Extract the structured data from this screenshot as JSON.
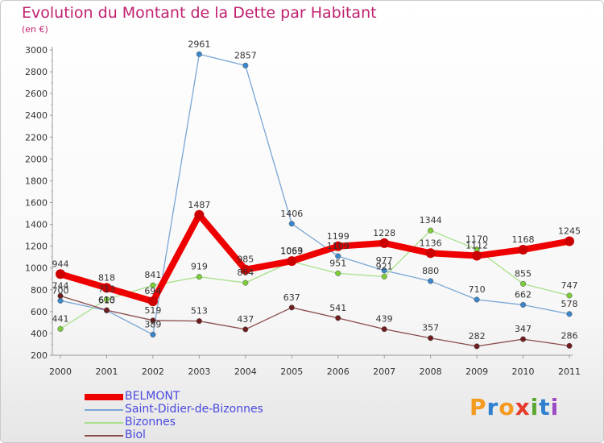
{
  "title": "Evolution du Montant de la Dette par Habitant",
  "subtitle": "(en €)",
  "logo": {
    "letters": [
      "P",
      "r",
      "o",
      "x",
      "i",
      "t",
      "i"
    ],
    "colors": [
      "#f39a1f",
      "#2f7fd1",
      "#f39a1f",
      "#e53b2c",
      "#5aa832",
      "#2f7fd1",
      "#9c4ac4"
    ]
  },
  "chart_data": {
    "type": "line",
    "title": "Evolution du Montant de la Dette par Habitant",
    "ylabel": "(en €)",
    "ylim": [
      200,
      3000
    ],
    "yticks": [
      200,
      400,
      600,
      800,
      1000,
      1200,
      1400,
      1600,
      1800,
      2000,
      2200,
      2400,
      2600,
      2800,
      3000
    ],
    "grid": false,
    "legend": "bottom-left",
    "x": [
      "2000",
      "2001",
      "2002",
      "2003",
      "2004",
      "2005",
      "2006",
      "2007",
      "2008",
      "2009",
      "2010",
      "2011"
    ],
    "series": [
      {
        "name": "BELMONT",
        "color": "#ee0000",
        "marker": "#cc0000",
        "width": 8,
        "markerR": 6,
        "values": [
          944,
          818,
          694,
          1487,
          985,
          1063,
          1199,
          1228,
          1136,
          1112,
          1168,
          1245
        ],
        "labels": [
          "944",
          "818",
          "694",
          "1487",
          "985",
          "1063",
          "1199",
          "1228",
          "1136",
          "1112",
          "1168",
          "1245"
        ]
      },
      {
        "name": "Saint-Didier-de-Bizonnes",
        "color": "#7aa6d6",
        "marker": "#3a86c8",
        "width": 1.3,
        "markerR": 3.3,
        "values": [
          700,
          610,
          389,
          2961,
          2857,
          1406,
          1109,
          977,
          880,
          710,
          662,
          578
        ],
        "labels": [
          "700",
          "610",
          "389",
          "2961",
          "2857",
          "1406",
          "1109",
          "977",
          "880",
          "710",
          "662",
          "578"
        ]
      },
      {
        "name": "Bizonnes",
        "color": "#a8e08a",
        "marker": "#7ccc3a",
        "width": 1.3,
        "markerR": 3.3,
        "values": [
          441,
          713,
          841,
          919,
          864,
          1059,
          951,
          921,
          1344,
          1170,
          855,
          747
        ],
        "labels": [
          "441",
          "713",
          "841",
          "919",
          "864",
          "1059",
          "951",
          "921",
          "1344",
          "1170",
          "855",
          "747"
        ]
      },
      {
        "name": "Biol",
        "color": "#8a4a4a",
        "marker": "#6e1e1e",
        "width": 1.3,
        "markerR": 3.3,
        "values": [
          744,
          613,
          519,
          513,
          437,
          637,
          541,
          439,
          357,
          282,
          347,
          286
        ],
        "labels": [
          "744",
          "613",
          "519",
          "513",
          "437",
          "637",
          "541",
          "439",
          "357",
          "282",
          "347",
          "286"
        ]
      }
    ]
  }
}
